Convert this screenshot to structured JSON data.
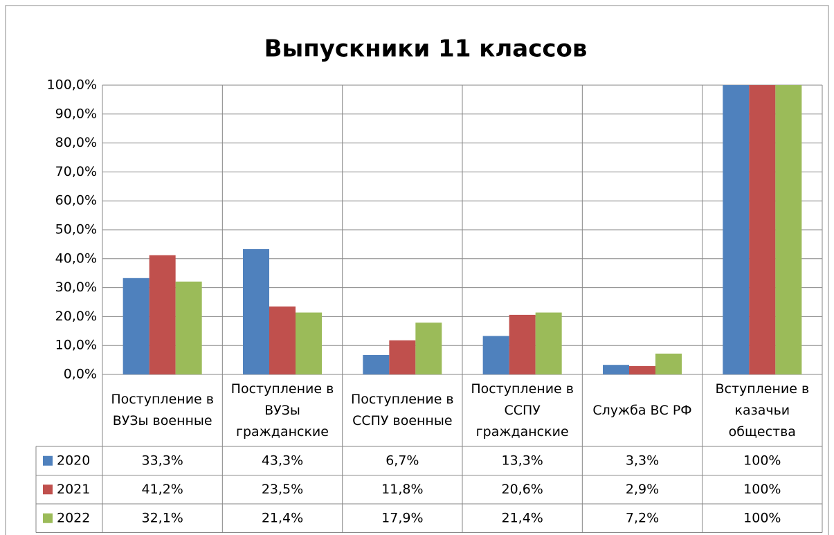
{
  "chart_data": {
    "type": "bar",
    "title": "Выпускники 11 классов",
    "categories": [
      "Поступление в ВУЗы военные",
      "Поступление в ВУЗы гражданские",
      "Поступление в ССПУ военные",
      "Поступление в ССПУ гражданские",
      "Служба ВС РФ",
      "Вступление в казачьи общества"
    ],
    "series": [
      {
        "name": "2020",
        "color": "#4f81bd",
        "values": [
          33.3,
          43.3,
          6.7,
          13.3,
          3.3,
          100
        ],
        "value_labels": [
          "33,3%",
          "43,3%",
          "6,7%",
          "13,3%",
          "3,3%",
          "100%"
        ]
      },
      {
        "name": "2021",
        "color": "#c0504d",
        "values": [
          41.2,
          23.5,
          11.8,
          20.6,
          2.9,
          100
        ],
        "value_labels": [
          "41,2%",
          "23,5%",
          "11,8%",
          "20,6%",
          "2,9%",
          "100%"
        ]
      },
      {
        "name": "2022",
        "color": "#9bbb59",
        "values": [
          32.1,
          21.4,
          17.9,
          21.4,
          7.2,
          100
        ],
        "value_labels": [
          "32,1%",
          "21,4%",
          "17,9%",
          "21,4%",
          "7,2%",
          "100%"
        ]
      }
    ],
    "ylim": [
      0,
      100
    ],
    "yticks": [
      {
        "value": 0,
        "label": "0,0%"
      },
      {
        "value": 10,
        "label": "10,0%"
      },
      {
        "value": 20,
        "label": "20,0%"
      },
      {
        "value": 30,
        "label": "30,0%"
      },
      {
        "value": 40,
        "label": "40,0%"
      },
      {
        "value": 50,
        "label": "50,0%"
      },
      {
        "value": 60,
        "label": "60,0%"
      },
      {
        "value": 70,
        "label": "70,0%"
      },
      {
        "value": 80,
        "label": "80,0%"
      },
      {
        "value": 90,
        "label": "90,0%"
      },
      {
        "value": 100,
        "label": "100,0%"
      }
    ],
    "grid": true
  }
}
